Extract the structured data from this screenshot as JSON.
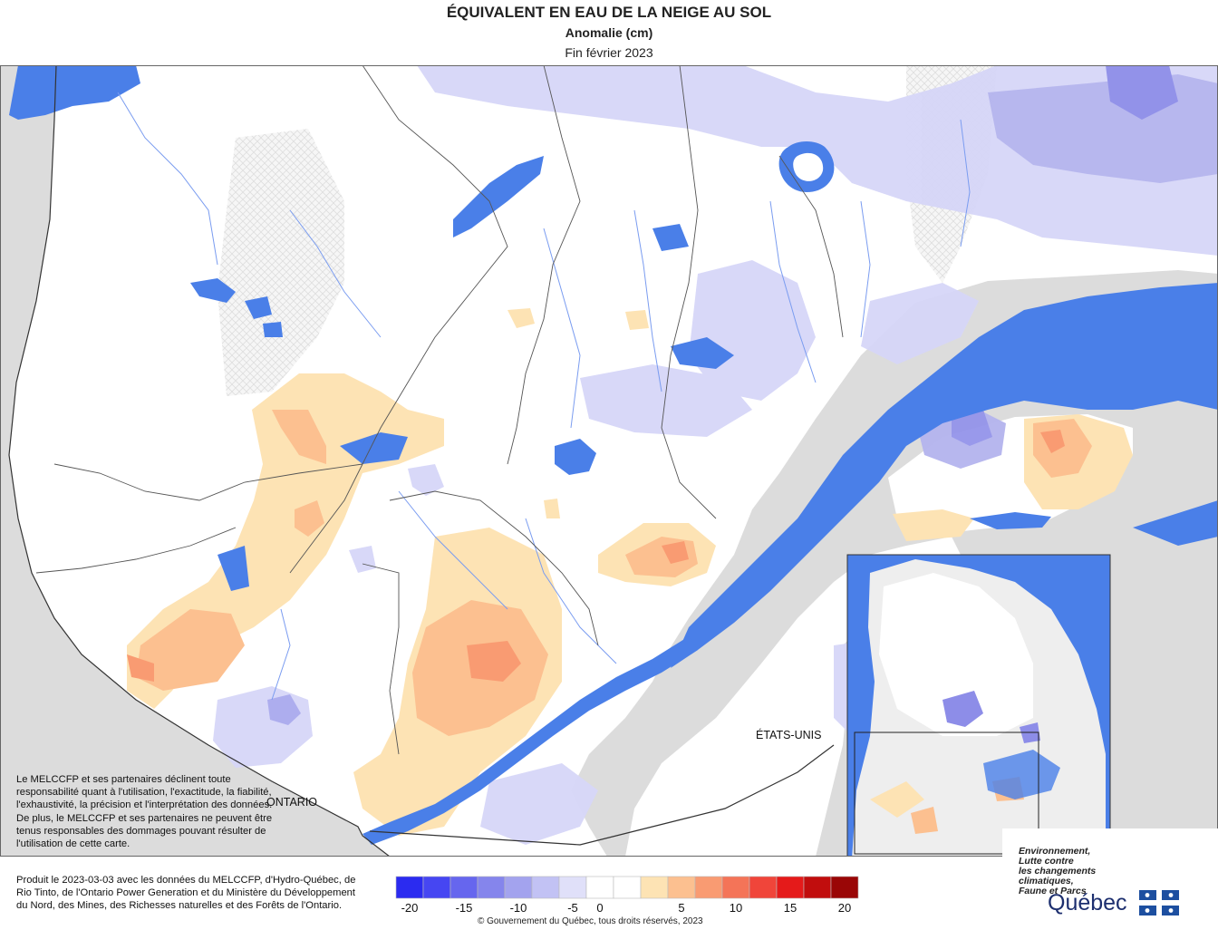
{
  "header": {
    "title": "ÉQUIVALENT EN EAU DE LA NEIGE AU SOL",
    "subtitle": "Anomalie (cm)",
    "period": "Fin février 2023"
  },
  "map_labels": {
    "ontario": "ONTARIO",
    "usa": "ÉTATS-UNIS"
  },
  "disclaimer": "Le MELCCFP et ses partenaires déclinent toute responsabilité quant à l'utilisation, l'exactitude, la fiabilité, l'exhaustivité, la précision et l'interprétation des données. De plus, le MELCCFP et ses partenaires ne peuvent être tenus responsables des dommages pouvant résulter de l'utilisation de cette carte.",
  "credits": "Produit le 2023-03-03 avec les données du MELCCFP, d'Hydro-Québec, de Rio Tinto, de l'Ontario Power Generation et du Ministère du Développement du Nord, des Mines, des Richesses naturelles et des Forêts de l'Ontario.",
  "copyright": "© Gouvernement du Québec, tous droits réservés, 2023",
  "legend": {
    "colors": [
      "#2b2bf0",
      "#4646f2",
      "#6666ee",
      "#8585ec",
      "#a3a3ee",
      "#c2c2f4",
      "#e0e0f9",
      "#ffffff",
      "#ffffff",
      "#fde3b4",
      "#fcc090",
      "#f99b72",
      "#f47458",
      "#f0453a",
      "#e51a1a",
      "#c10d0d",
      "#9a0606"
    ],
    "ticks": [
      "-20",
      "-15",
      "-10",
      "-5",
      "0",
      "5",
      "10",
      "15",
      "20"
    ]
  },
  "logo": {
    "ministry": [
      "Environnement,",
      "Lutte contre",
      "les changements",
      "climatiques,",
      "Faune et Parcs"
    ],
    "name": "Québec"
  },
  "colors": {
    "water": "#4a7fe8",
    "land_outside": "#dcdcdc",
    "deficit": "#c8c8f4",
    "surplus": "#fde0b0",
    "strong_surplus": "#f8a97f"
  }
}
